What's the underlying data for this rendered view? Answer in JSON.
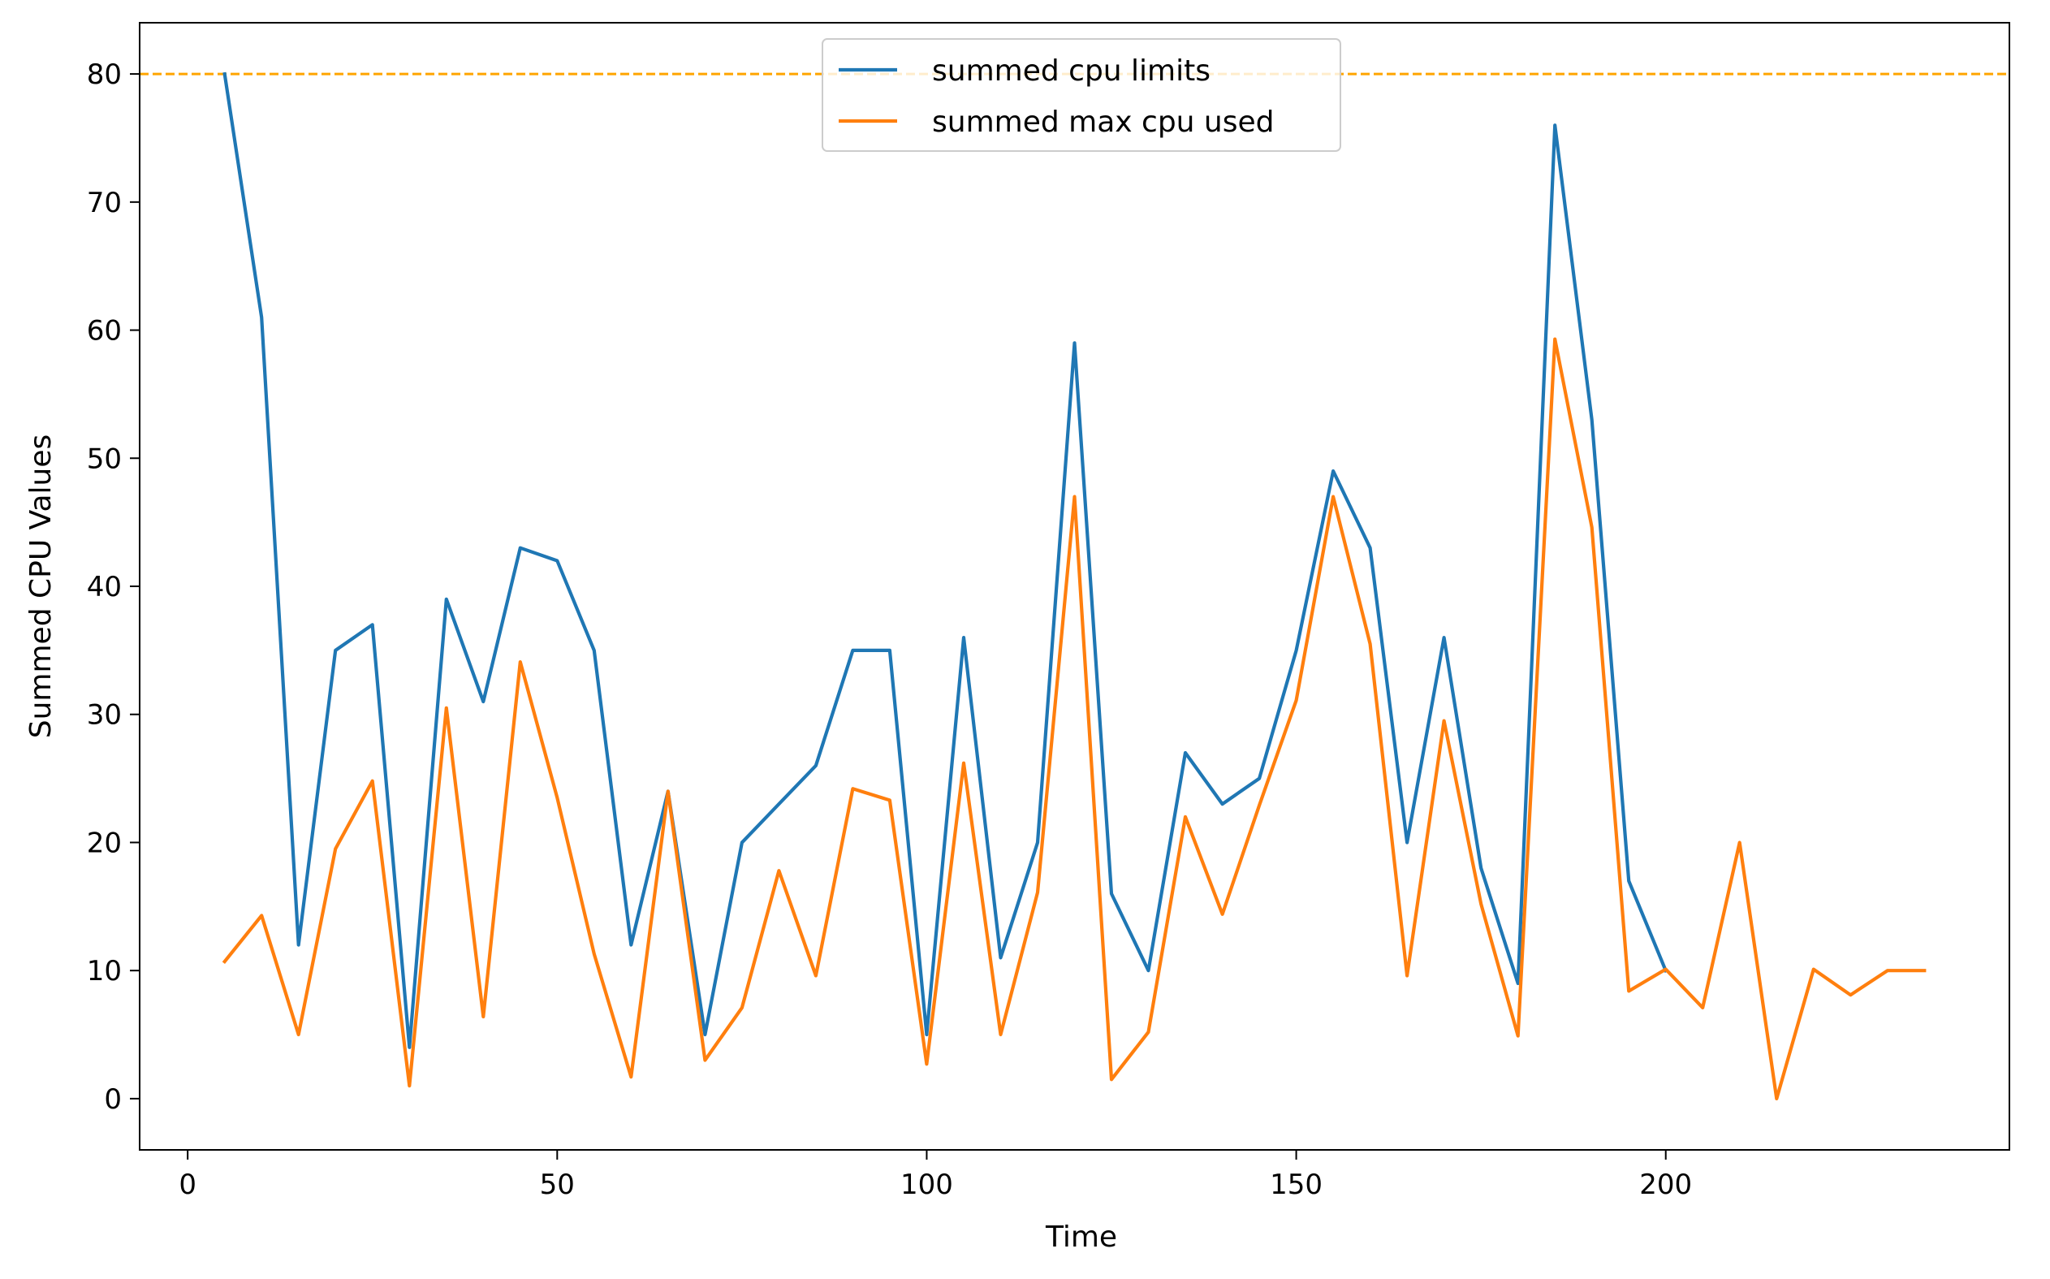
{
  "chart_data": {
    "type": "line",
    "title": "",
    "xlabel": "Time",
    "ylabel": "Summed CPU Values",
    "xlim": [
      -6.5,
      246.5
    ],
    "ylim": [
      -4,
      84
    ],
    "xticks": [
      0,
      50,
      100,
      150,
      200
    ],
    "yticks": [
      0,
      10,
      20,
      30,
      40,
      50,
      60,
      70,
      80
    ],
    "grid": false,
    "legend_position": "upper center",
    "reference_line": {
      "y": 80,
      "style": "dashed",
      "color": "#ffa500"
    },
    "series": [
      {
        "name": "summed cpu limits",
        "color": "#1f77b4",
        "x": [
          5,
          10,
          15,
          20,
          25,
          30,
          35,
          40,
          45,
          50,
          55,
          60,
          65,
          70,
          75,
          80,
          85,
          90,
          95,
          100,
          105,
          110,
          115,
          120,
          125,
          130,
          135,
          140,
          145,
          150,
          155,
          160,
          165,
          170,
          175,
          180,
          185,
          190,
          195,
          200
        ],
        "values": [
          80,
          61,
          12,
          35,
          37,
          4,
          39,
          31,
          43,
          42,
          35,
          12,
          24,
          5,
          20,
          23,
          26,
          35,
          35,
          5,
          36,
          11,
          20,
          59,
          16,
          10,
          27,
          23,
          25,
          35,
          49,
          43,
          20,
          36,
          18,
          9,
          76,
          53,
          17,
          10
        ]
      },
      {
        "name": "summed max cpu used",
        "color": "#ff7f0e",
        "x": [
          5,
          10,
          15,
          20,
          25,
          30,
          35,
          40,
          45,
          50,
          55,
          60,
          65,
          70,
          75,
          80,
          85,
          90,
          95,
          100,
          105,
          110,
          115,
          120,
          125,
          130,
          135,
          140,
          145,
          150,
          155,
          160,
          165,
          170,
          175,
          180,
          185,
          190,
          195,
          200,
          205,
          210,
          215,
          220,
          225,
          230,
          235
        ],
        "values": [
          10.7,
          14.3,
          5,
          19.5,
          24.8,
          1,
          30.5,
          6.4,
          34.1,
          23.5,
          11.3,
          1.7,
          24,
          3,
          7.1,
          17.8,
          9.6,
          24.2,
          23.3,
          2.7,
          26.2,
          5,
          16.1,
          47,
          1.5,
          5.2,
          22,
          14.4,
          22.9,
          31.1,
          47,
          35.5,
          9.6,
          29.5,
          15.2,
          4.9,
          59.3,
          44.6,
          8.4,
          10.1,
          7.1,
          20,
          0,
          10.1,
          8.1,
          10,
          10
        ]
      }
    ]
  }
}
